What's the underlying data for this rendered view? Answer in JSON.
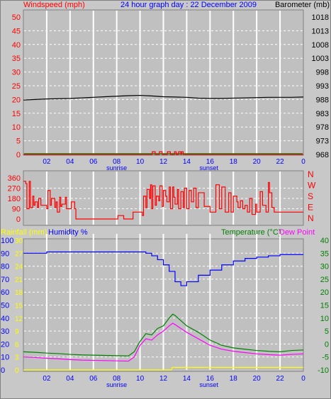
{
  "header": {
    "windspeed_label": "Windspeed (mph)",
    "title": "24 hour graph day : 22 December 2009",
    "barometer_label": "Barometer (mb)"
  },
  "colors": {
    "background": "#c8c8c8",
    "plot_bg": "#c0c0c0",
    "grid_major": "#ffffff",
    "wind": "#ff0000",
    "barometer": "#000000",
    "direction": "#ff0000",
    "rain": "#ffff00",
    "humidity": "#0000ff",
    "temperature": "#008000",
    "dewpoint": "#ff00ff",
    "axis_text": "#0000ff",
    "wind_axis_text": "#ff0000",
    "dir_axis_text": "#ff0000",
    "temp_axis_text": "#008000"
  },
  "chart_data": [
    {
      "type": "line",
      "id": "wind_baro",
      "left_axis": {
        "label": "Windspeed (mph)",
        "ticks": [
          0,
          5,
          10,
          15,
          20,
          25,
          30,
          35,
          40,
          45,
          50
        ],
        "ylim": [
          0,
          50
        ]
      },
      "right_axis": {
        "label": "Barometer (mb)",
        "ticks": [
          968,
          973,
          978,
          983,
          988,
          993,
          998,
          1003,
          1008,
          1013,
          1018
        ],
        "ylim": [
          968,
          1018
        ]
      },
      "x_ticks": [
        "02",
        "04",
        "06",
        "08",
        "10",
        "12",
        "14",
        "16",
        "18",
        "20",
        "22",
        "0"
      ],
      "x_ticks_hours": [
        2,
        4,
        6,
        8,
        10,
        12,
        14,
        16,
        18,
        20,
        22,
        24
      ],
      "annotations": [
        {
          "text": "sunrise",
          "hour": 8.0
        },
        {
          "text": "sunset",
          "hour": 15.9
        }
      ],
      "series": [
        {
          "axis": "right",
          "hours": [
            0,
            1,
            2,
            3,
            4,
            5,
            6,
            7,
            8,
            9,
            10,
            11,
            12,
            13,
            14,
            15,
            16,
            17,
            18,
            19,
            20,
            21,
            22,
            23,
            24
          ],
          "values": [
            987.8,
            988.0,
            988.2,
            988.3,
            988.4,
            988.6,
            988.8,
            989.0,
            989.2,
            989.4,
            989.5,
            989.3,
            989.0,
            988.9,
            988.8,
            988.5,
            988.4,
            988.4,
            988.5,
            988.6,
            988.7,
            988.8,
            988.8,
            988.8,
            988.9
          ]
        },
        {
          "axis": "left",
          "hours": [
            0,
            11.0,
            11.05,
            11.3,
            11.6,
            11.65,
            11.9,
            12.3,
            12.35,
            12.6,
            12.9,
            12.95,
            13.1,
            13.3,
            13.5,
            13.55,
            13.7,
            24
          ],
          "values": [
            0,
            0,
            1,
            0,
            0,
            1,
            0,
            0,
            1,
            0,
            0,
            1,
            0,
            1,
            0,
            1,
            0,
            0
          ]
        }
      ]
    },
    {
      "type": "line",
      "id": "direction",
      "left_axis": {
        "ticks": [
          360,
          270,
          180,
          90,
          0
        ],
        "ylim": [
          0,
          360
        ]
      },
      "right_axis": {
        "ticks": [
          "N",
          "W",
          "S",
          "E",
          "N"
        ]
      },
      "series": [
        {
          "hours": [
            0,
            0.2,
            0.3,
            0.5,
            0.6,
            0.8,
            0.9,
            1.0,
            1.2,
            1.3,
            1.5,
            2.0,
            2.1,
            2.3,
            2.4,
            2.7,
            2.8,
            2.9,
            3.1,
            3.2,
            3.3,
            3.6,
            3.7,
            4.0,
            4.1,
            4.4,
            4.5,
            8.0,
            8.1,
            8.5,
            8.6,
            9.3,
            9.4,
            9.9,
            10.2,
            10.3,
            10.5,
            10.6,
            10.8,
            10.9,
            11.0,
            11.1,
            11.3,
            11.4,
            11.6,
            11.7,
            11.9,
            12.0,
            12.2,
            12.3,
            12.5,
            12.6,
            12.8,
            12.9,
            13.0,
            13.2,
            13.3,
            13.5,
            13.7,
            13.8,
            14.0,
            14.2,
            14.4,
            14.6,
            14.8,
            15.0,
            15.5,
            16.0,
            16.2,
            16.5,
            16.8,
            17.0,
            17.3,
            17.6,
            17.8,
            18.0,
            18.3,
            18.4,
            18.6,
            18.8,
            19.0,
            19.2,
            19.4,
            19.6,
            19.9,
            20.0,
            20.3,
            20.5,
            20.8,
            21.0,
            21.1,
            21.3,
            21.5,
            21.8,
            24.0
          ],
          "values": [
            330,
            310,
            90,
            330,
            100,
            200,
            120,
            150,
            100,
            180,
            120,
            90,
            250,
            120,
            180,
            100,
            150,
            60,
            190,
            110,
            130,
            190,
            90,
            90,
            150,
            90,
            0,
            0,
            30,
            30,
            0,
            0,
            60,
            60,
            30,
            200,
            100,
            260,
            180,
            300,
            90,
            290,
            120,
            200,
            160,
            290,
            110,
            250,
            200,
            150,
            280,
            90,
            280,
            190,
            130,
            260,
            90,
            240,
            100,
            270,
            90,
            250,
            150,
            270,
            100,
            230,
            110,
            60,
            60,
            300,
            90,
            280,
            60,
            230,
            60,
            200,
            150,
            100,
            160,
            90,
            120,
            60,
            180,
            40,
            130,
            60,
            240,
            120,
            60,
            320,
            230,
            100,
            60,
            60,
            60
          ]
        }
      ]
    },
    {
      "type": "line",
      "id": "temp_hum",
      "labels": {
        "rainfall": "Rainfall (mm)",
        "humidity": "Humidity %",
        "temperature": "Temperature (°C)",
        "dewpoint": "Dew Point"
      },
      "humidity_axis": {
        "ticks": [
          100,
          90,
          80,
          70,
          60,
          50,
          40,
          30,
          20,
          10,
          0
        ],
        "ylim": [
          0,
          100
        ]
      },
      "rain_axis": {
        "ticks": [
          30,
          27,
          24,
          21,
          18,
          15,
          12,
          9,
          6,
          3,
          0
        ],
        "ylim": [
          0,
          30
        ]
      },
      "temp_axis": {
        "ticks": [
          40,
          35,
          30,
          25,
          20,
          15,
          10,
          5,
          0,
          -5,
          -10
        ],
        "ylim": [
          -10,
          40
        ]
      },
      "x_ticks": [
        "02",
        "04",
        "06",
        "08",
        "10",
        "12",
        "14",
        "16",
        "18",
        "20",
        "22",
        "0"
      ],
      "x_ticks_hours": [
        2,
        4,
        6,
        8,
        10,
        12,
        14,
        16,
        18,
        20,
        22,
        24
      ],
      "annotations": [
        {
          "text": "sunrise",
          "hour": 8.0
        },
        {
          "text": "sunset",
          "hour": 15.9
        }
      ],
      "series": [
        {
          "name": "Humidity %",
          "axis": "humidity",
          "hours": [
            0,
            1,
            2,
            3,
            4,
            5,
            6,
            7,
            8,
            9,
            10,
            10.5,
            11,
            11.5,
            12,
            12.5,
            13,
            13.5,
            14,
            15,
            16,
            17,
            18,
            19,
            20,
            21,
            22,
            23,
            24
          ],
          "values": [
            90,
            90,
            91,
            91,
            91,
            91,
            91,
            91,
            91,
            91,
            91,
            90,
            88,
            85,
            81,
            76,
            68,
            65,
            68,
            73,
            77,
            81,
            84,
            86,
            87,
            88,
            89,
            89,
            89
          ]
        },
        {
          "name": "Temperature (°C)",
          "axis": "temp",
          "hours": [
            0,
            1,
            2,
            3,
            4,
            5,
            6,
            7,
            8,
            9,
            9.5,
            10,
            10.5,
            11,
            11.5,
            12,
            12.5,
            12.8,
            13,
            13.5,
            14,
            15,
            16,
            17,
            18,
            19,
            20,
            21,
            22,
            23,
            24
          ],
          "values": [
            -3.0,
            -3.2,
            -3.5,
            -3.7,
            -4.0,
            -4.2,
            -4.3,
            -4.4,
            -4.5,
            -4.6,
            -3,
            1,
            4,
            3.5,
            6,
            7,
            10,
            11.5,
            11,
            9,
            7,
            4.5,
            1.5,
            -0.5,
            -1.5,
            -2.0,
            -2.5,
            -2.8,
            -3.0,
            -2.5,
            -2.3
          ]
        },
        {
          "name": "Dew Point",
          "axis": "temp",
          "hours": [
            0,
            1,
            2,
            3,
            4,
            5,
            6,
            7,
            8,
            9,
            9.5,
            10,
            10.5,
            11,
            11.5,
            12,
            12.5,
            12.8,
            13,
            13.5,
            14,
            15,
            16,
            17,
            18,
            19,
            20,
            21,
            22,
            23,
            24
          ],
          "values": [
            -5.0,
            -5.2,
            -5.5,
            -5.7,
            -6.0,
            -6.2,
            -6.3,
            -6.4,
            -6.5,
            -6.6,
            -5,
            -0.5,
            2,
            1.5,
            3.5,
            5,
            7,
            8,
            7.5,
            6,
            4.5,
            2,
            -0.5,
            -2.0,
            -2.8,
            -3.3,
            -3.8,
            -4.1,
            -4.3,
            -4.0,
            -3.8
          ]
        },
        {
          "name": "Rainfall (mm)",
          "axis": "rain",
          "hours": [
            0,
            12.7,
            12.75,
            24
          ],
          "values": [
            0,
            0,
            0.6,
            0.6
          ]
        }
      ]
    }
  ]
}
